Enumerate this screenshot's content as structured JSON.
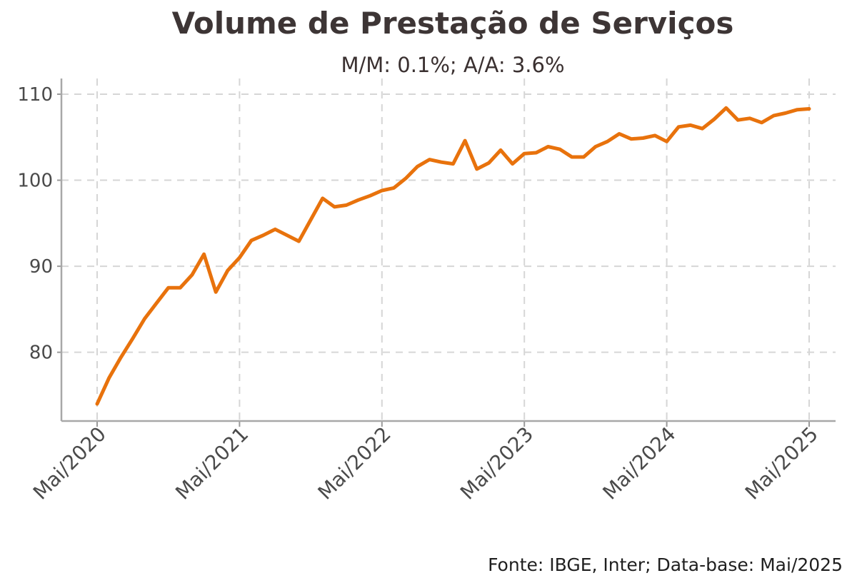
{
  "header": {
    "title": "Volume de Prestação de Serviços",
    "subtitle": "M/M: 0.1%; A/A: 3.6%"
  },
  "caption": "Fonte: IBGE, Inter; Data-base: Mai/2025",
  "chart_data": {
    "type": "line",
    "title": "Volume de Prestação de Serviços",
    "subtitle": "M/M: 0.1%; A/A: 3.6%",
    "xlabel": "",
    "ylabel": "",
    "x_start": "2020-05",
    "x_end": "2025-05",
    "x_ticks": [
      "Mai/2020",
      "Mai/2021",
      "Mai/2022",
      "Mai/2023",
      "Mai/2024",
      "Mai/2025"
    ],
    "y_ticks": [
      80,
      90,
      100,
      110
    ],
    "ylim": [
      72.2,
      110.3
    ],
    "grid": true,
    "line_color": "#E8720C",
    "series": [
      {
        "values": [
          74.0,
          77.0,
          79.4,
          81.6,
          83.9,
          85.7,
          87.5,
          87.5,
          89.0,
          91.4,
          87.0,
          89.5,
          91.0,
          93.0,
          93.6,
          94.3,
          93.6,
          92.9,
          95.4,
          97.9,
          96.9,
          97.1,
          97.7,
          98.2,
          98.8,
          99.1,
          100.2,
          101.6,
          102.4,
          102.1,
          101.9,
          104.6,
          101.3,
          102.0,
          103.5,
          101.9,
          103.1,
          103.2,
          103.9,
          103.6,
          102.7,
          102.7,
          103.9,
          104.5,
          105.4,
          104.8,
          104.9,
          105.2,
          104.5,
          106.2,
          106.4,
          106.0,
          107.1,
          108.4,
          107.0,
          107.2,
          106.7,
          107.5,
          107.8,
          108.2,
          108.3
        ]
      }
    ]
  }
}
